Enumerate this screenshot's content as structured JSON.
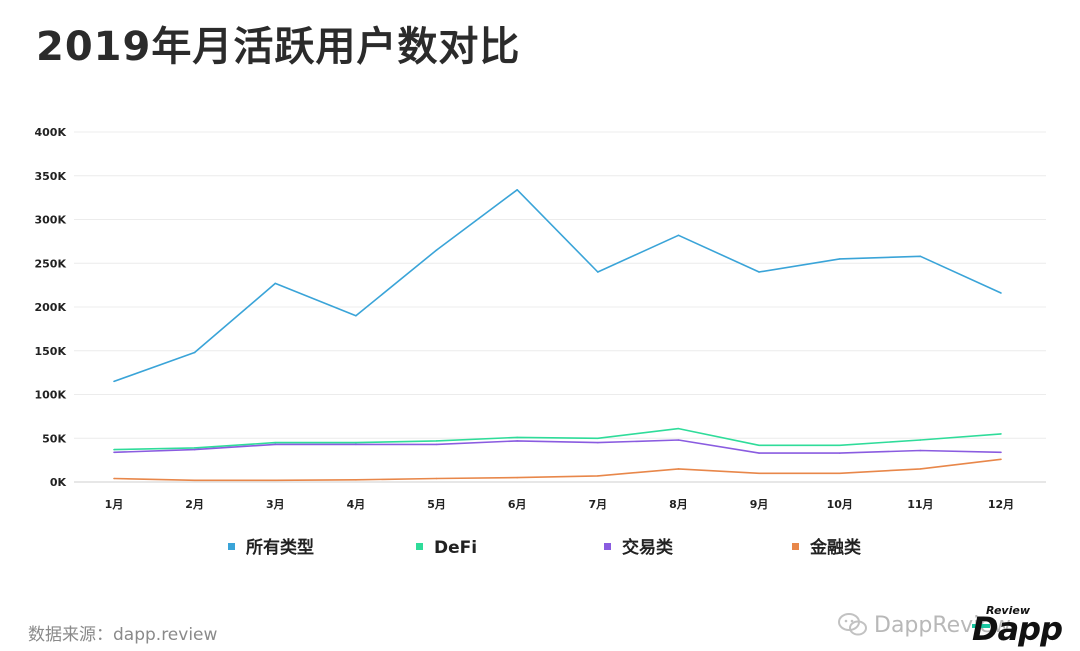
{
  "title": "2019年月活跃用户数对比",
  "source_text": "数据来源：dapp.review",
  "watermark": {
    "text": "DappReview",
    "icon": "wechat-icon"
  },
  "logo": {
    "word": "Dapp",
    "review": "Review"
  },
  "colors": {
    "all": "#3aa4d8",
    "defi": "#2fdc9a",
    "exchange": "#8a5ce0",
    "finance": "#e8874a",
    "grid": "#ececec",
    "axis": "#cfcfcf"
  },
  "chart_data": {
    "type": "line",
    "title": "2019年月活跃用户数对比",
    "categories": [
      "1月",
      "2月",
      "3月",
      "4月",
      "5月",
      "6月",
      "7月",
      "8月",
      "9月",
      "10月",
      "11月",
      "12月"
    ],
    "ylim": [
      0,
      400000
    ],
    "yticks": [
      0,
      50000,
      100000,
      150000,
      200000,
      250000,
      300000,
      350000,
      400000
    ],
    "ytick_labels": [
      "0K",
      "50K",
      "100K",
      "150K",
      "200K",
      "250K",
      "300K",
      "350K",
      "400K"
    ],
    "grid": true,
    "legend_position": "bottom",
    "series": [
      {
        "name": "所有类型",
        "color": "#3aa4d8",
        "values": [
          115000,
          148000,
          227000,
          190000,
          265000,
          334000,
          240000,
          282000,
          240000,
          255000,
          258000,
          216000
        ]
      },
      {
        "name": "DeFi",
        "color": "#2fdc9a",
        "values": [
          37000,
          39000,
          45000,
          45000,
          47000,
          51000,
          50000,
          61000,
          42000,
          42000,
          48000,
          55000
        ]
      },
      {
        "name": "交易类",
        "color": "#8a5ce0",
        "values": [
          34000,
          37000,
          43000,
          43000,
          43000,
          47000,
          45000,
          48000,
          33000,
          33000,
          36000,
          34000
        ]
      },
      {
        "name": "金融类",
        "color": "#e8874a",
        "values": [
          4000,
          2000,
          2000,
          2500,
          4000,
          5000,
          7000,
          15000,
          10000,
          10000,
          15000,
          26000
        ]
      }
    ]
  }
}
